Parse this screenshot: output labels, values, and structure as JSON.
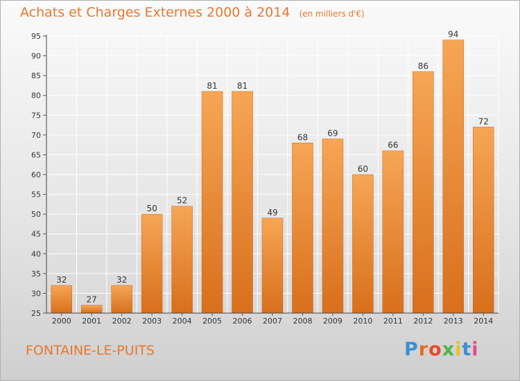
{
  "title": "Achats et Charges Externes 2000 à 2014",
  "subtitle": "(en milliers d'€)",
  "commune": "FONTAINE-LE-PUITS",
  "logo": {
    "letters": [
      "P",
      "r",
      "o",
      "x",
      "i",
      "t",
      "i"
    ],
    "colors": [
      "#3a8fd6",
      "#e36f1e",
      "#e84a2a",
      "#4db748",
      "#e6c21a",
      "#3a8fd6",
      "#e84a8a"
    ]
  },
  "colors": {
    "accent": "#e8772e",
    "bar_top": "#f6a655",
    "bar_bottom": "#d86f1c"
  },
  "chart_data": {
    "type": "bar",
    "categories": [
      "2000",
      "2001",
      "2002",
      "2003",
      "2004",
      "2005",
      "2006",
      "2007",
      "2008",
      "2009",
      "2010",
      "2011",
      "2012",
      "2013",
      "2014"
    ],
    "values": [
      32,
      27,
      32,
      50,
      52,
      81,
      81,
      49,
      68,
      69,
      60,
      66,
      86,
      94,
      72
    ],
    "title": "Achats et Charges Externes 2000 à 2014",
    "xlabel": "",
    "ylabel": "",
    "ylim": [
      25,
      95
    ],
    "yticks": [
      25,
      30,
      35,
      40,
      45,
      50,
      55,
      60,
      65,
      70,
      75,
      80,
      85,
      90,
      95
    ],
    "grid": true
  }
}
